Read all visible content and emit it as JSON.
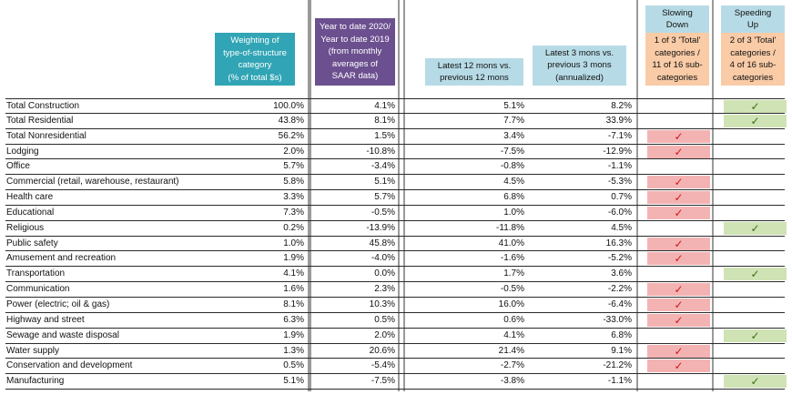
{
  "headers": {
    "weighting": [
      "Weighting of",
      "type-of-structure",
      "category",
      "(% of total $s)"
    ],
    "ytd": [
      "Year to date 2020/",
      "Year to date 2019",
      "(from monthly",
      "averages of",
      "SAAR data)"
    ],
    "latest12": [
      "Latest 12 mons vs.",
      "previous 12 mons"
    ],
    "latest3": [
      "Latest 3 mons vs.",
      "previous 3 mons",
      "(annualized)"
    ],
    "slowing_title": [
      "Slowing",
      "Down"
    ],
    "slowing_sub": [
      "1 of 3 'Total'",
      "categories /",
      "11 of 16 sub-",
      "categories"
    ],
    "speeding_title": [
      "Speeding",
      "Up"
    ],
    "speeding_sub": [
      "2 of 3 'Total'",
      "categories /",
      "4 of 16 sub-",
      "categories"
    ]
  },
  "colors": {
    "teal": "#31a5b5",
    "purple": "#6b4f8f",
    "light_blue": "#b7dbe6",
    "orange": "#f9cba6",
    "red_fill": "#f4b3b3",
    "red_check": "#d01818",
    "green_fill": "#cfe3b5",
    "green_check": "#3b6e12"
  },
  "check_glyph": "✓",
  "rows": [
    {
      "name": "Total Construction",
      "weight": "100.0%",
      "ytd": "4.1%",
      "l12": "5.1%",
      "l3": "8.2%",
      "status": "speed"
    },
    {
      "name": "Total Residential",
      "weight": "43.8%",
      "ytd": "8.1%",
      "l12": "7.7%",
      "l3": "33.9%",
      "status": "speed"
    },
    {
      "name": "Total Nonresidential",
      "weight": "56.2%",
      "ytd": "1.5%",
      "l12": "3.4%",
      "l3": "-7.1%",
      "status": "slow"
    },
    {
      "name": "Lodging",
      "weight": "2.0%",
      "ytd": "-10.8%",
      "l12": "-7.5%",
      "l3": "-12.9%",
      "status": "slow"
    },
    {
      "name": "Office",
      "weight": "5.7%",
      "ytd": "-3.4%",
      "l12": "-0.8%",
      "l3": "-1.1%",
      "status": ""
    },
    {
      "name": "Commercial (retail, warehouse, restaurant)",
      "weight": "5.8%",
      "ytd": "5.1%",
      "l12": "4.5%",
      "l3": "-5.3%",
      "status": "slow"
    },
    {
      "name": "Health care",
      "weight": "3.3%",
      "ytd": "5.7%",
      "l12": "6.8%",
      "l3": "0.7%",
      "status": "slow"
    },
    {
      "name": "Educational",
      "weight": "7.3%",
      "ytd": "-0.5%",
      "l12": "1.0%",
      "l3": "-6.0%",
      "status": "slow"
    },
    {
      "name": "Religious",
      "weight": "0.2%",
      "ytd": "-13.9%",
      "l12": "-11.8%",
      "l3": "4.5%",
      "status": "speed"
    },
    {
      "name": "Public safety",
      "weight": "1.0%",
      "ytd": "45.8%",
      "l12": "41.0%",
      "l3": "16.3%",
      "status": "slow"
    },
    {
      "name": "Amusement and recreation",
      "weight": "1.9%",
      "ytd": "-4.0%",
      "l12": "-1.6%",
      "l3": "-5.2%",
      "status": "slow"
    },
    {
      "name": "Transportation",
      "weight": "4.1%",
      "ytd": "0.0%",
      "l12": "1.7%",
      "l3": "3.6%",
      "status": "speed"
    },
    {
      "name": "Communication",
      "weight": "1.6%",
      "ytd": "2.3%",
      "l12": "-0.5%",
      "l3": "-2.2%",
      "status": "slow"
    },
    {
      "name": "Power (electric; oil & gas)",
      "weight": "8.1%",
      "ytd": "10.3%",
      "l12": "16.0%",
      "l3": "-6.4%",
      "status": "slow"
    },
    {
      "name": "Highway and street",
      "weight": "6.3%",
      "ytd": "0.5%",
      "l12": "0.6%",
      "l3": "-33.0%",
      "status": "slow"
    },
    {
      "name": "Sewage and waste disposal",
      "weight": "1.9%",
      "ytd": "2.0%",
      "l12": "4.1%",
      "l3": "6.8%",
      "status": "speed"
    },
    {
      "name": "Water supply",
      "weight": "1.3%",
      "ytd": "20.6%",
      "l12": "21.4%",
      "l3": "9.1%",
      "status": "slow"
    },
    {
      "name": "Conservation and development",
      "weight": "0.5%",
      "ytd": "-5.4%",
      "l12": "-2.7%",
      "l3": "-21.2%",
      "status": "slow"
    },
    {
      "name": "Manufacturing",
      "weight": "5.1%",
      "ytd": "-7.5%",
      "l12": "-3.8%",
      "l3": "-1.1%",
      "status": "speed"
    }
  ]
}
